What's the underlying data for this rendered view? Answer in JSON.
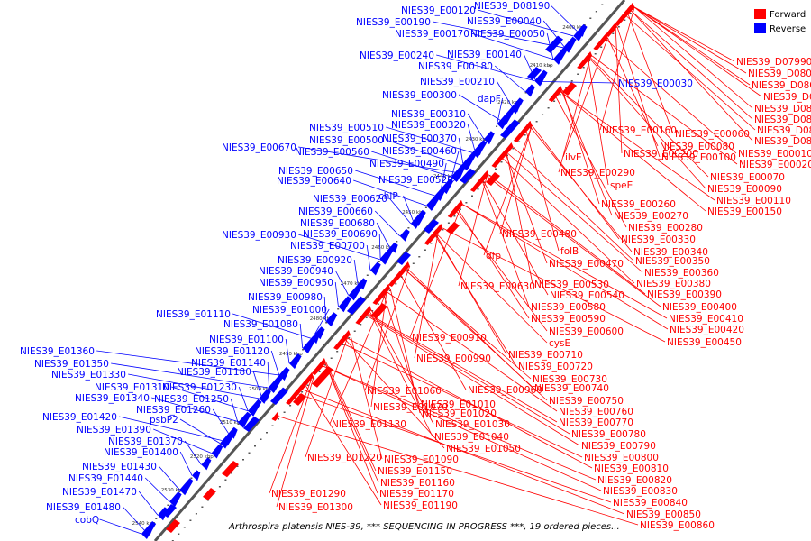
{
  "caption": "Arthrospira platensis NIES-39, *** SEQUENCING IN PROGRESS ***, 19 ordered pieces...",
  "legend": {
    "forward": {
      "label": "Forward",
      "color": "#ff0000"
    },
    "reverse": {
      "label": "Reverse",
      "color": "#0000ff"
    }
  },
  "axis": {
    "ticks": [
      "2400 kbp",
      "2410 kbp",
      "2420 kbp",
      "2430 kbp",
      "2440 kbp",
      "2450 kbp",
      "2460 kbp",
      "2470 kbp",
      "2480 kbp",
      "2490 kbp",
      "2500 kbp",
      "2510 kbp",
      "2520 kbp",
      "2530 kbp",
      "2540 kbp"
    ]
  },
  "reverse_labels": [
    "NIES39_D08190",
    "NIES39_E00120",
    "NIES39_E00040",
    "NIES39_E00190",
    "NIES39_E00170",
    "NIES39_E00050",
    "NIES39_E00240",
    "NIES39_E00140",
    "NIES39_E00180",
    "NIES39_E00210",
    "NIES39_E00300",
    "dapF",
    "NIES39_E00310",
    "NIES39_E00320",
    "NIES39_E00510",
    "NIES39_E00370",
    "NIES39_E00500",
    "NIES39_E00670",
    "NIES39_E00560",
    "NIES39_E00460",
    "NIES39_E00490",
    "NIES39_E00650",
    "NIES39_E00640",
    "NIES39_E00520",
    "chlP",
    "NIES39_E00620",
    "NIES39_E00660",
    "NIES39_E00680",
    "NIES39_E00930",
    "NIES39_E00690",
    "NIES39_E00700",
    "NIES39_E00920",
    "NIES39_E00940",
    "NIES39_E00950",
    "NIES39_E00980",
    "NIES39_E01000",
    "NIES39_E01110",
    "NIES39_E01080",
    "NIES39_E01100",
    "NIES39_E01360",
    "NIES39_E01120",
    "NIES39_E01350",
    "NIES39_E01140",
    "NIES39_E01330",
    "NIES39_E01180",
    "NIES39_E01310",
    "NIES39_E01230",
    "NIES39_E01340",
    "NIES39_E01250",
    "NIES39_E01260",
    "NIES39_E01420",
    "psbP2",
    "NIES39_E01390",
    "NIES39_E01370",
    "NIES39_E01400",
    "NIES39_E01430",
    "NIES39_E01440",
    "NIES39_E01470",
    "NIES39_E01480",
    "cobQ",
    "NIES39_E00030"
  ],
  "forward_labels": [
    "NIES39_D07990",
    "NIES39_D08000",
    "NIES39_D08020",
    "NIES39_D08060",
    "NIES39_D08090",
    "NIES39_D08110",
    "NIES39_D08120",
    "NIES39_E00060",
    "NIES39_E00160",
    "NIES39_D08170",
    "NIES39_E00080",
    "NIES39_E00010",
    "ilvE",
    "NIES39_E00200",
    "NIES39_E00100",
    "NIES39_E00020",
    "NIES39_E00290",
    "NIES39_E00070",
    "speE",
    "NIES39_E00090",
    "NIES39_E00110",
    "NIES39_E00260",
    "NIES39_E00150",
    "NIES39_E00270",
    "NIES39_E00280",
    "NIES39_E00480",
    "NIES39_E00330",
    "folB",
    "NIES39_E00340",
    "dfp",
    "NIES39_E00470",
    "NIES39_E00350",
    "NIES39_E00360",
    "NIES39_E00380",
    "NIES39_E00530",
    "NIES39_E00630",
    "NIES39_E00540",
    "NIES39_E00390",
    "NIES39_E00580",
    "NIES39_E00400",
    "NIES39_E00590",
    "NIES39_E00410",
    "NIES39_E00600",
    "NIES39_E00420",
    "NIES39_E00910",
    "cysE",
    "NIES39_E00450",
    "NIES39_E00710",
    "NIES39_E00990",
    "NIES39_E00720",
    "NIES39_E00730",
    "NIES39_E00960",
    "NIES39_E00740",
    "NIES39_E01060",
    "NIES39_E00750",
    "NIES39_E01010",
    "NIES39_E01070",
    "NIES39_E00760",
    "NIES39_E01020",
    "NIES39_E01130",
    "NIES39_E00770",
    "NIES39_E01030",
    "NIES39_E00780",
    "NIES39_E01040",
    "NIES39_E00790",
    "NIES39_E01050",
    "NIES39_E00800",
    "NIES39_E01220",
    "NIES39_E01090",
    "NIES39_E00810",
    "NIES39_E01150",
    "NIES39_E00820",
    "NIES39_E01160",
    "NIES39_E00830",
    "NIES39_E01170",
    "NIES39_E00840",
    "NIES39_E01290",
    "NIES39_E01190",
    "NIES39_E00850",
    "NIES39_E01300",
    "NIES39_E00860"
  ]
}
